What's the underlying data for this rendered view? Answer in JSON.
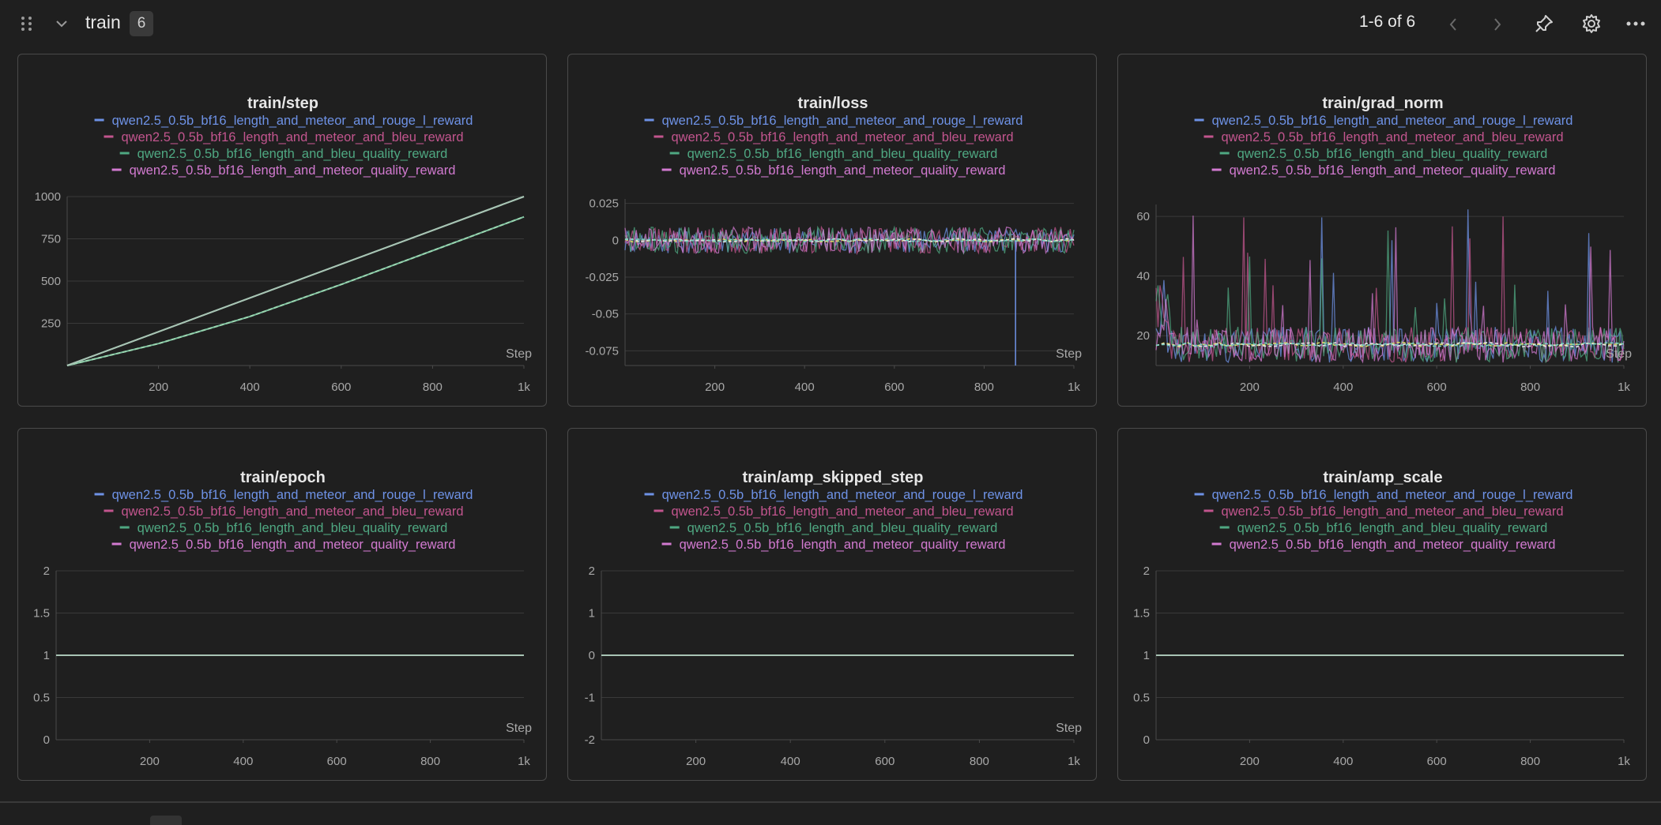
{
  "header": {
    "section_title": "train",
    "panel_count": "6",
    "page_range": "1-6 of 6"
  },
  "icons": {
    "drag_handle": "drag-dots-icon",
    "collapse": "chevron-down-icon",
    "prev": "chevron-left-icon",
    "next": "chevron-right-icon",
    "pin": "pin-icon",
    "settings": "gear-icon",
    "more": "more-horizontal-icon"
  },
  "colors": {
    "background": "#1f1f1f",
    "panel_border": "#4a4a4a",
    "grid": "#3a3a3a",
    "axis_text": "#a8a8a8",
    "series": [
      "#6e92e6",
      "#c2558e",
      "#4fa882",
      "#d27ad0"
    ]
  },
  "legend": [
    "qwen2.5_0.5b_bf16_length_and_meteor_and_rouge_l_reward",
    "qwen2.5_0.5b_bf16_length_and_meteor_and_bleu_reward",
    "qwen2.5_0.5b_bf16_length_and_bleu_quality_reward",
    "qwen2.5_0.5b_bf16_length_and_meteor_quality_reward"
  ],
  "chart_data": [
    {
      "type": "line",
      "title": "train/step",
      "xlabel": "Step",
      "x_ticks": [
        "200",
        "400",
        "600",
        "800",
        "1k"
      ],
      "y_ticks": [
        "250",
        "500",
        "750",
        "1000"
      ],
      "xlim": [
        0,
        1000
      ],
      "ylim": [
        0,
        1000
      ],
      "series": [
        {
          "name": "qwen2.5_0.5b_bf16_length_and_meteor_and_rouge_l_reward",
          "x": [
            0,
            1000
          ],
          "y": [
            0,
            1000
          ]
        },
        {
          "name": "qwen2.5_0.5b_bf16_length_and_meteor_and_bleu_reward",
          "x": [
            0,
            200,
            400,
            600,
            800,
            1000
          ],
          "y": [
            0,
            130,
            290,
            480,
            680,
            880
          ]
        },
        {
          "name": "qwen2.5_0.5b_bf16_length_and_bleu_quality_reward",
          "x": [
            0,
            200,
            400,
            600,
            800,
            1000
          ],
          "y": [
            0,
            130,
            290,
            480,
            680,
            880
          ]
        },
        {
          "name": "qwen2.5_0.5b_bf16_length_and_meteor_quality_reward",
          "x": [
            0,
            1000
          ],
          "y": [
            0,
            1000
          ]
        }
      ]
    },
    {
      "type": "line",
      "title": "train/loss",
      "xlabel": "Step",
      "x_ticks": [
        "200",
        "400",
        "600",
        "800",
        "1k"
      ],
      "y_ticks": [
        "0.025",
        "0",
        "-0.025",
        "-0.05",
        "-0.075"
      ],
      "xlim": [
        0,
        1000
      ],
      "ylim": [
        -0.085,
        0.028
      ],
      "noise": {
        "center": 0,
        "amplitude": 0.009,
        "spike": {
          "x": 870,
          "y": -0.085
        }
      },
      "series": [
        {
          "name": "qwen2.5_0.5b_bf16_length_and_meteor_and_rouge_l_reward"
        },
        {
          "name": "qwen2.5_0.5b_bf16_length_and_meteor_and_bleu_reward"
        },
        {
          "name": "qwen2.5_0.5b_bf16_length_and_bleu_quality_reward"
        },
        {
          "name": "qwen2.5_0.5b_bf16_length_and_meteor_quality_reward"
        }
      ]
    },
    {
      "type": "line",
      "title": "train/grad_norm",
      "xlabel": "Step",
      "x_ticks": [
        "200",
        "400",
        "600",
        "800",
        "1k"
      ],
      "y_ticks": [
        "20",
        "40",
        "60"
      ],
      "xlim": [
        0,
        1000
      ],
      "ylim": [
        10,
        64
      ],
      "noise": {
        "center": 17,
        "amplitude": 6,
        "max_spike": 63
      },
      "series": [
        {
          "name": "qwen2.5_0.5b_bf16_length_and_meteor_and_rouge_l_reward"
        },
        {
          "name": "qwen2.5_0.5b_bf16_length_and_meteor_and_bleu_reward"
        },
        {
          "name": "qwen2.5_0.5b_bf16_length_and_bleu_quality_reward"
        },
        {
          "name": "qwen2.5_0.5b_bf16_length_and_meteor_quality_reward"
        }
      ]
    },
    {
      "type": "line",
      "title": "train/epoch",
      "xlabel": "Step",
      "x_ticks": [
        "200",
        "400",
        "600",
        "800",
        "1k"
      ],
      "y_ticks": [
        "2",
        "1.5",
        "1",
        "0.5",
        "0"
      ],
      "xlim": [
        0,
        1000
      ],
      "ylim": [
        0,
        2
      ],
      "series": [
        {
          "name": "qwen2.5_0.5b_bf16_length_and_meteor_and_rouge_l_reward",
          "x": [
            0,
            1000
          ],
          "y": [
            1,
            1
          ]
        },
        {
          "name": "qwen2.5_0.5b_bf16_length_and_meteor_and_bleu_reward",
          "x": [
            0,
            1000
          ],
          "y": [
            1,
            1
          ]
        },
        {
          "name": "qwen2.5_0.5b_bf16_length_and_bleu_quality_reward",
          "x": [
            0,
            1000
          ],
          "y": [
            1,
            1
          ]
        },
        {
          "name": "qwen2.5_0.5b_bf16_length_and_meteor_quality_reward",
          "x": [
            0,
            1000
          ],
          "y": [
            1,
            1
          ]
        }
      ]
    },
    {
      "type": "line",
      "title": "train/amp_skipped_step",
      "xlabel": "Step",
      "x_ticks": [
        "200",
        "400",
        "600",
        "800",
        "1k"
      ],
      "y_ticks": [
        "2",
        "1",
        "0",
        "-1",
        "-2"
      ],
      "xlim": [
        0,
        1000
      ],
      "ylim": [
        -2,
        2
      ],
      "series": [
        {
          "name": "qwen2.5_0.5b_bf16_length_and_meteor_and_rouge_l_reward",
          "x": [
            0,
            1000
          ],
          "y": [
            0,
            0
          ]
        },
        {
          "name": "qwen2.5_0.5b_bf16_length_and_meteor_and_bleu_reward",
          "x": [
            0,
            1000
          ],
          "y": [
            0,
            0
          ]
        },
        {
          "name": "qwen2.5_0.5b_bf16_length_and_bleu_quality_reward",
          "x": [
            0,
            1000
          ],
          "y": [
            0,
            0
          ]
        },
        {
          "name": "qwen2.5_0.5b_bf16_length_and_meteor_quality_reward",
          "x": [
            0,
            1000
          ],
          "y": [
            0,
            0
          ]
        }
      ]
    },
    {
      "type": "line",
      "title": "train/amp_scale",
      "xlabel": "",
      "x_ticks": [
        "200",
        "400",
        "600",
        "800",
        "1k"
      ],
      "y_ticks": [
        "2",
        "1.5",
        "1",
        "0.5",
        "0"
      ],
      "xlim": [
        0,
        1000
      ],
      "ylim": [
        0,
        2
      ],
      "series": [
        {
          "name": "qwen2.5_0.5b_bf16_length_and_meteor_and_rouge_l_reward",
          "x": [
            0,
            1000
          ],
          "y": [
            1,
            1
          ]
        },
        {
          "name": "qwen2.5_0.5b_bf16_length_and_meteor_and_bleu_reward",
          "x": [
            0,
            1000
          ],
          "y": [
            1,
            1
          ]
        },
        {
          "name": "qwen2.5_0.5b_bf16_length_and_bleu_quality_reward",
          "x": [
            0,
            1000
          ],
          "y": [
            1,
            1
          ]
        },
        {
          "name": "qwen2.5_0.5b_bf16_length_and_meteor_quality_reward",
          "x": [
            0,
            1000
          ],
          "y": [
            1,
            1
          ]
        }
      ]
    }
  ]
}
